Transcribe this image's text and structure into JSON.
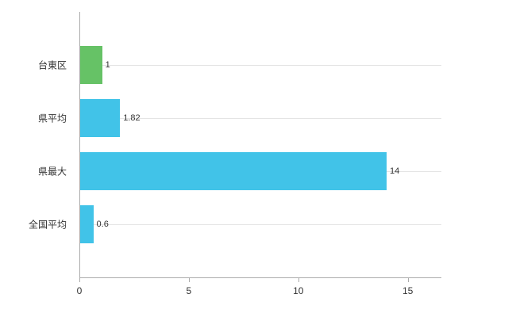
{
  "chart_data": {
    "type": "bar",
    "orientation": "horizontal",
    "title": "",
    "xlabel": "",
    "ylabel": "",
    "categories": [
      "台東区",
      "県平均",
      "県最大",
      "全国平均"
    ],
    "values": [
      1,
      1.82,
      14,
      0.6
    ],
    "value_labels": [
      "1",
      "1.82",
      "14",
      "0.6"
    ],
    "bar_colors": [
      "#66c266",
      "#41c3e8",
      "#41c3e8",
      "#41c3e8"
    ],
    "x_ticks": [
      0,
      5,
      10,
      15
    ],
    "x_tick_labels": [
      "0",
      "5",
      "10",
      "15"
    ],
    "xlim": [
      0,
      16.5
    ],
    "grid": "horizontal",
    "legend": "none"
  },
  "colors": {
    "background": "#ffffff",
    "axis": "#ababab",
    "grid": "#e4e4e4",
    "text": "#333333",
    "bar_green": "#66c266",
    "bar_blue": "#41c3e8"
  }
}
